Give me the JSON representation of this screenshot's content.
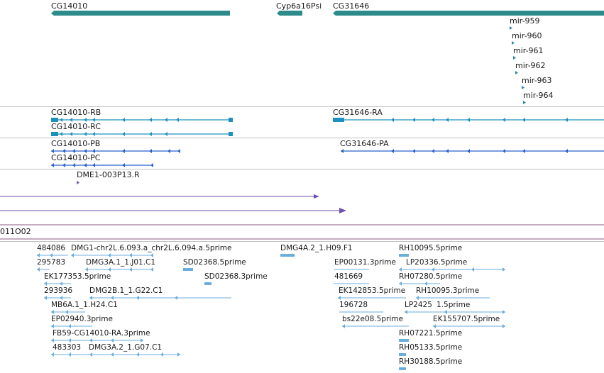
{
  "tracks": {
    "genes": {
      "labels": [
        "CG14010",
        "Cyp6a16Psi",
        "CG31646"
      ],
      "mirnas": [
        "mir-959",
        "mir-960",
        "mir-961",
        "mir-962",
        "mir-963",
        "mir-964"
      ],
      "color": "#2e8b8b",
      "mirna_color": "#2a87a8"
    },
    "transcripts_a": {
      "labels": [
        "CG14010-RB",
        "CG14010-RC",
        "CG31646-RA"
      ],
      "color": "#1d91bd"
    },
    "transcripts_b": {
      "labels": [
        "CG14010-PB",
        "CG14010-PC",
        "CG31646-PA"
      ],
      "color": "#2a62c9"
    },
    "purple": {
      "labels": [
        "DME1-003P13.R"
      ],
      "color": "#6f4fb0"
    },
    "clone": {
      "label": "011O02",
      "color": "#8a5a86"
    },
    "ests": {
      "labels": [
        "484086",
        "DMG1-chr2L.6.093.a_chr2L.6.094.a.5prime",
        "DMG4A.2_1.H09.F1",
        "RH10095.5prime",
        "295783",
        "DMG3A.1_1.J01.C1",
        "SD02368.5prime",
        "EP00131.3prime",
        "LP20336.5prime",
        "EK177353.5prime",
        "SD02368.3prime",
        "481669",
        "RH07280.5prime",
        "293936",
        "DMG2B.1_1.G22.C1",
        "EK142853.5prime",
        "RH10095.3prime",
        "MB6A.1_1.H24.C1",
        "196728",
        "LP2425",
        "1.5prime",
        "EP02940.3prime",
        "bs22e08.5prime",
        "EK155707.5prime",
        "FB59-CG14010-RA.3prime",
        "RH07221.5prime",
        "483303",
        "DMG3A.2_1.G07.C1",
        "RH05133.5prime",
        "RH30188.5prime"
      ],
      "color": "#6aaedc"
    }
  }
}
